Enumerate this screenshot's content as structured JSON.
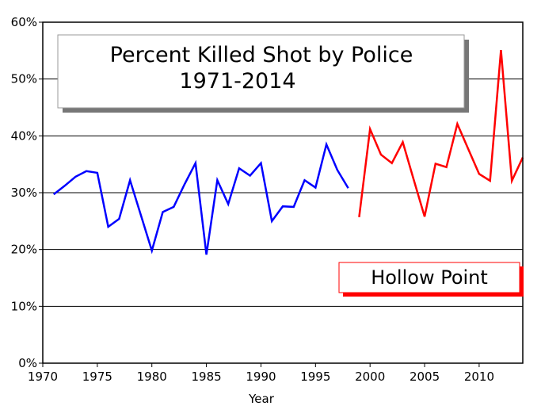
{
  "chart_data": {
    "type": "line",
    "title": "Percent Killed Shot by Police",
    "subtitle": "1971-2014",
    "xlabel": "Year",
    "xlim": [
      1970,
      2014
    ],
    "xticks": [
      1970,
      1975,
      1980,
      1985,
      1990,
      1995,
      2000,
      2005,
      2010
    ],
    "ylim": [
      0,
      60
    ],
    "yticks": [
      {
        "value": 0,
        "label": "0%"
      },
      {
        "value": 10,
        "label": "10%"
      },
      {
        "value": 20,
        "label": "20%"
      },
      {
        "value": 30,
        "label": "30%"
      },
      {
        "value": 40,
        "label": "40%"
      },
      {
        "value": 50,
        "label": "50%"
      },
      {
        "value": 60,
        "label": "60%"
      }
    ],
    "grid": true,
    "series": [
      {
        "color": "#0000ff",
        "x": [
          1971,
          1972,
          1973,
          1974,
          1975,
          1976,
          1977,
          1978,
          1979,
          1980,
          1981,
          1982,
          1983,
          1984,
          1985,
          1986,
          1987,
          1988,
          1989,
          1990,
          1991,
          1992,
          1993,
          1994,
          1995,
          1996,
          1997,
          1998
        ],
        "values": [
          29.7,
          31.2,
          32.8,
          33.8,
          33.5,
          24.0,
          25.4,
          32.2,
          26.0,
          19.8,
          26.6,
          27.5,
          31.5,
          35.2,
          19.1,
          32.2,
          28.0,
          34.3,
          33.0,
          35.2,
          25.0,
          27.6,
          27.5,
          32.2,
          30.9,
          38.5,
          34.0,
          30.8
        ]
      },
      {
        "name": "Hollow Point",
        "color": "#ff0000",
        "x": [
          1999,
          2000,
          2001,
          2002,
          2003,
          2004,
          2005,
          2006,
          2007,
          2008,
          2009,
          2010,
          2011,
          2012,
          2013,
          2014
        ],
        "values": [
          25.7,
          41.2,
          36.7,
          35.2,
          38.9,
          32.3,
          25.8,
          35.1,
          34.5,
          42.1,
          37.7,
          33.3,
          32.1,
          55.1,
          32.1,
          36.2
        ]
      }
    ]
  }
}
